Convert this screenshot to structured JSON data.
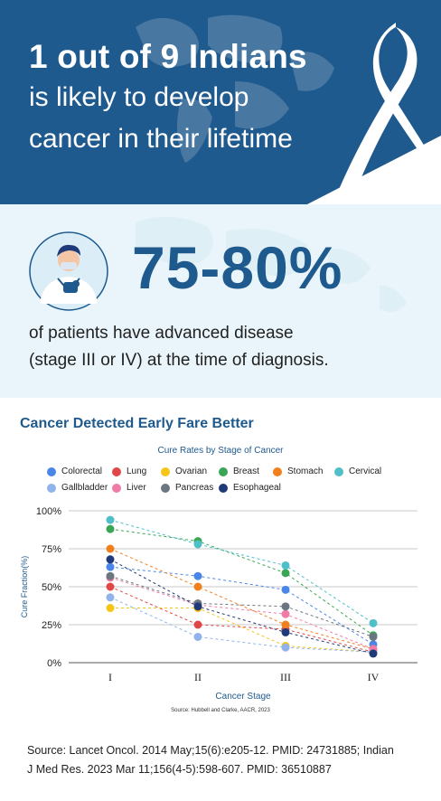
{
  "headline": {
    "line1": "1 out of 9 Indians",
    "line2": "is likely to develop",
    "line3": "cancer in their lifetime"
  },
  "stat": {
    "value": "75-80%",
    "line1": "of patients have advanced disease",
    "line2": "(stage III or IV) at the time of diagnosis."
  },
  "colors": {
    "brand": "#1f5a8e",
    "banner": "#1f5a8e",
    "light_bg": "#e9f5fa"
  },
  "icons": {
    "doctor": "doctor-avatar-icon",
    "ribbon": "awareness-ribbon-icon",
    "map": "world-map-icon"
  },
  "chart_data": {
    "type": "scatter",
    "title": "Cancer Detected Early Fare Better",
    "subtitle": "Cure Rates by Stage of Cancer",
    "xlabel": "Cancer Stage",
    "ylabel": "Cure Fraction(%)",
    "categories": [
      "I",
      "II",
      "III",
      "IV"
    ],
    "yticks": [
      "0%",
      "25%",
      "50%",
      "75%",
      "100%"
    ],
    "ylim": [
      0,
      100
    ],
    "grid": true,
    "legend_placement": "top",
    "source_note": "Source: Hubbell and Clarke, AACR, 2023",
    "series": [
      {
        "name": "Colorectal",
        "color": "#4a86e8",
        "values": [
          63,
          57,
          48,
          12
        ]
      },
      {
        "name": "Lung",
        "color": "#e04848",
        "values": [
          50,
          25,
          22,
          7
        ]
      },
      {
        "name": "Ovarian",
        "color": "#f5c518",
        "values": [
          36,
          36,
          11,
          7
        ]
      },
      {
        "name": "Breast",
        "color": "#3aa655",
        "values": [
          88,
          80,
          59,
          18
        ]
      },
      {
        "name": "Stomach",
        "color": "#f07f1e",
        "values": [
          75,
          50,
          25,
          9
        ]
      },
      {
        "name": "Cervical",
        "color": "#4fbfc8",
        "values": [
          94,
          78,
          64,
          26
        ]
      },
      {
        "name": "Gallbladder",
        "color": "#8fb3ea",
        "values": [
          43,
          17,
          10,
          7
        ]
      },
      {
        "name": "Liver",
        "color": "#f07ba6",
        "values": [
          56,
          38,
          32,
          9
        ]
      },
      {
        "name": "Pancreas",
        "color": "#6b7680",
        "values": [
          57,
          39,
          37,
          17
        ]
      },
      {
        "name": "Esophageal",
        "color": "#1f3a78",
        "values": [
          68,
          37,
          20,
          6
        ]
      }
    ]
  },
  "source": {
    "line1": "Source: Lancet Oncol. 2014 May;15(6):e205-12. PMID: 24731885; Indian",
    "line2": "J Med Res. 2023 Mar 11;156(4-5):598-607. PMID: 36510887"
  }
}
